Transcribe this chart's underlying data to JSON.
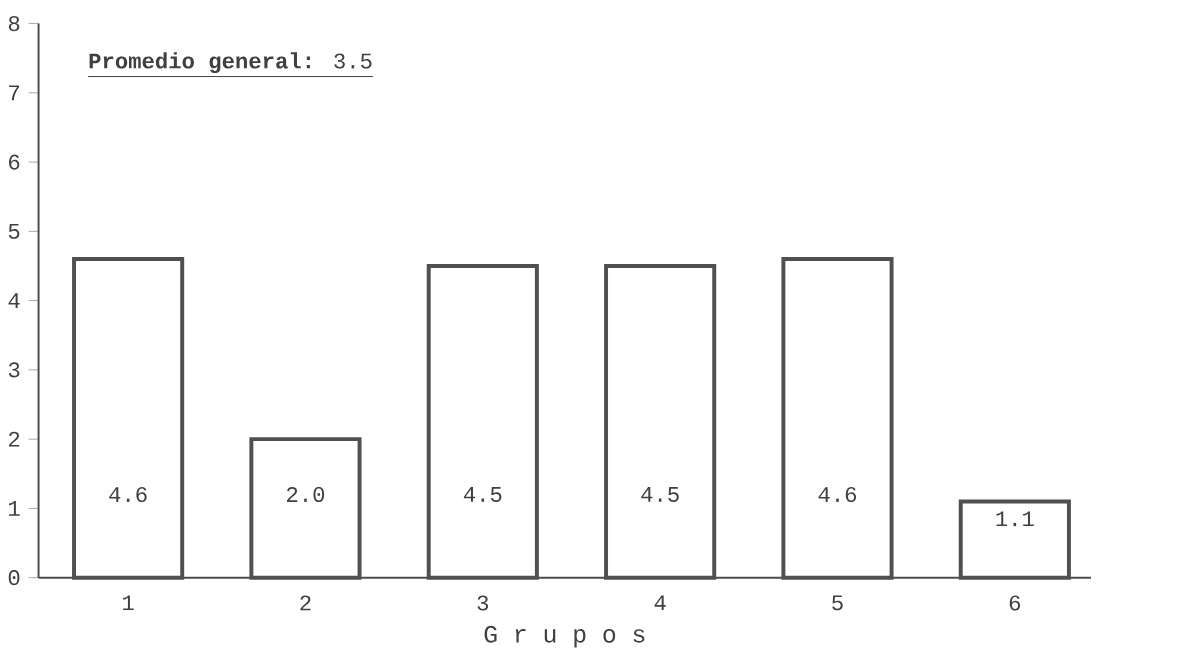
{
  "chart_data": {
    "type": "bar",
    "xlabel": "G r u p o s",
    "categories": [
      "1",
      "2",
      "3",
      "4",
      "5",
      "6"
    ],
    "values": [
      4.6,
      2.0,
      4.5,
      4.5,
      4.6,
      1.1
    ],
    "color": "#505050",
    "value_labels": [
      "4.6",
      "2.0",
      "4.5",
      "4.5",
      "4.6",
      "1.1"
    ],
    "ylim": [
      0,
      8
    ],
    "yticks": [
      0,
      1,
      2,
      3,
      4,
      5,
      6,
      7,
      8
    ],
    "annotations": [
      "**Promedio general:** 3.5"
    ]
  }
}
